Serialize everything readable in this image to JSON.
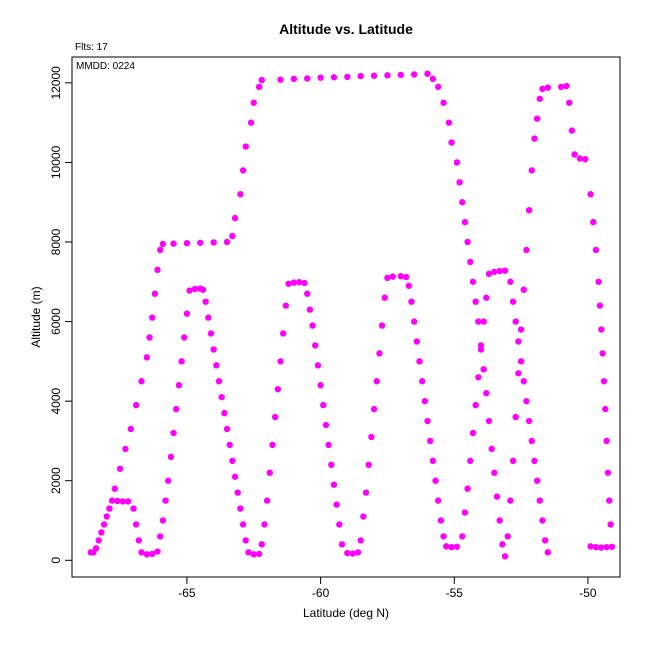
{
  "chart_data": {
    "type": "scatter",
    "title": "Altitude vs. Latitude",
    "subtitle": "Flts: 17",
    "annotation": "MMDD: 0224",
    "xlabel": "Latitude (deg N)",
    "ylabel": "Altitude (m)",
    "xlim": [
      -69.3,
      -48.8
    ],
    "ylim": [
      -420,
      12650
    ],
    "xticks": [
      -65,
      -60,
      -55,
      -50
    ],
    "yticks": [
      0,
      2000,
      4000,
      6000,
      8000,
      10000,
      12000
    ],
    "grid": false,
    "marker_color": "#ff00ff",
    "series": [
      {
        "points": [
          [
            -68.5,
            200
          ],
          [
            -68.3,
            500
          ],
          [
            -68.1,
            900
          ],
          [
            -67.9,
            1300
          ],
          [
            -67.7,
            1800
          ],
          [
            -67.5,
            2300
          ],
          [
            -67.3,
            2800
          ],
          [
            -67.1,
            3300
          ],
          [
            -66.9,
            3900
          ],
          [
            -66.7,
            4500
          ],
          [
            -66.5,
            5100
          ],
          [
            -66.4,
            5600
          ],
          [
            -66.3,
            6100
          ],
          [
            -66.2,
            6700
          ],
          [
            -66.1,
            7300
          ],
          [
            -66.0,
            7800
          ],
          [
            -65.9,
            7950
          ],
          [
            -65.5,
            7960
          ],
          [
            -65.0,
            7970
          ],
          [
            -64.5,
            7980
          ],
          [
            -64.0,
            7990
          ],
          [
            -63.5,
            8000
          ],
          [
            -63.3,
            8150
          ],
          [
            -63.2,
            8600
          ],
          [
            -63.0,
            9200
          ],
          [
            -62.9,
            9800
          ],
          [
            -62.8,
            10400
          ],
          [
            -62.6,
            11000
          ],
          [
            -62.5,
            11500
          ],
          [
            -62.3,
            11900
          ],
          [
            -62.2,
            12070
          ],
          [
            -61.5,
            12080
          ],
          [
            -61.0,
            12100
          ],
          [
            -60.5,
            12110
          ],
          [
            -60.0,
            12130
          ],
          [
            -59.5,
            12140
          ],
          [
            -59.0,
            12150
          ],
          [
            -58.5,
            12170
          ],
          [
            -58.0,
            12180
          ],
          [
            -57.5,
            12190
          ],
          [
            -57.0,
            12200
          ],
          [
            -56.5,
            12210
          ],
          [
            -56.0,
            12230
          ],
          [
            -55.8,
            12100
          ],
          [
            -55.6,
            11900
          ],
          [
            -55.4,
            11500
          ],
          [
            -55.2,
            11000
          ],
          [
            -55.1,
            10500
          ],
          [
            -54.9,
            10000
          ],
          [
            -54.8,
            9500
          ],
          [
            -54.7,
            9000
          ],
          [
            -54.6,
            8500
          ],
          [
            -54.5,
            8000
          ],
          [
            -54.4,
            7500
          ],
          [
            -54.3,
            7000
          ],
          [
            -54.2,
            6500
          ],
          [
            -54.1,
            6000
          ],
          [
            -54.0,
            5400
          ],
          [
            -53.9,
            4800
          ],
          [
            -53.8,
            4200
          ],
          [
            -53.7,
            3500
          ],
          [
            -53.6,
            2800
          ],
          [
            -53.5,
            2200
          ],
          [
            -53.4,
            1600
          ],
          [
            -53.3,
            1000
          ],
          [
            -53.2,
            400
          ],
          [
            -53.1,
            100
          ],
          [
            -53.0,
            600
          ],
          [
            -52.9,
            1500
          ],
          [
            -52.8,
            2500
          ],
          [
            -52.7,
            3600
          ],
          [
            -52.6,
            4700
          ],
          [
            -52.5,
            5800
          ],
          [
            -52.4,
            6800
          ],
          [
            -52.3,
            7800
          ],
          [
            -52.2,
            8800
          ],
          [
            -52.1,
            9800
          ],
          [
            -52.0,
            10600
          ],
          [
            -51.9,
            11100
          ],
          [
            -51.8,
            11600
          ],
          [
            -51.7,
            11850
          ],
          [
            -51.5,
            11880
          ],
          [
            -51.0,
            11900
          ],
          [
            -50.8,
            11920
          ],
          [
            -50.7,
            11500
          ],
          [
            -50.6,
            10800
          ],
          [
            -50.5,
            10200
          ],
          [
            -50.3,
            10100
          ],
          [
            -50.1,
            10080
          ],
          [
            -49.9,
            9200
          ],
          [
            -49.8,
            8500
          ],
          [
            -49.7,
            7800
          ],
          [
            -49.6,
            7000
          ],
          [
            -49.55,
            6400
          ],
          [
            -49.5,
            5800
          ],
          [
            -49.45,
            5200
          ],
          [
            -49.4,
            4500
          ],
          [
            -49.35,
            3800
          ],
          [
            -49.3,
            3000
          ],
          [
            -49.25,
            2200
          ],
          [
            -49.2,
            1500
          ],
          [
            -49.15,
            900
          ],
          [
            -49.1,
            340
          ],
          [
            -49.3,
            330
          ],
          [
            -49.5,
            320
          ],
          [
            -49.7,
            330
          ],
          [
            -49.9,
            350
          ]
        ]
      },
      {
        "points": [
          [
            -68.6,
            200
          ],
          [
            -68.4,
            300
          ],
          [
            -68.2,
            700
          ],
          [
            -68.0,
            1100
          ],
          [
            -67.8,
            1500
          ],
          [
            -67.6,
            1490
          ],
          [
            -67.4,
            1480
          ],
          [
            -67.2,
            1480
          ],
          [
            -67.0,
            1300
          ],
          [
            -66.9,
            900
          ],
          [
            -66.8,
            500
          ],
          [
            -66.7,
            200
          ],
          [
            -66.5,
            150
          ],
          [
            -66.3,
            160
          ],
          [
            -66.1,
            220
          ],
          [
            -66.0,
            600
          ],
          [
            -65.9,
            1000
          ],
          [
            -65.8,
            1500
          ],
          [
            -65.7,
            2000
          ],
          [
            -65.6,
            2600
          ],
          [
            -65.5,
            3200
          ],
          [
            -65.4,
            3800
          ],
          [
            -65.3,
            4400
          ],
          [
            -65.2,
            5000
          ],
          [
            -65.1,
            5600
          ],
          [
            -65.0,
            6200
          ],
          [
            -64.9,
            6780
          ],
          [
            -64.7,
            6820
          ],
          [
            -64.5,
            6830
          ],
          [
            -64.4,
            6800
          ],
          [
            -64.3,
            6500
          ],
          [
            -64.2,
            6100
          ],
          [
            -64.1,
            5700
          ],
          [
            -64.0,
            5300
          ],
          [
            -63.9,
            4900
          ],
          [
            -63.8,
            4500
          ],
          [
            -63.7,
            4100
          ],
          [
            -63.6,
            3700
          ],
          [
            -63.5,
            3300
          ],
          [
            -63.4,
            2900
          ],
          [
            -63.3,
            2500
          ],
          [
            -63.2,
            2100
          ],
          [
            -63.1,
            1700
          ],
          [
            -63.0,
            1300
          ],
          [
            -62.9,
            900
          ],
          [
            -62.8,
            500
          ],
          [
            -62.7,
            200
          ],
          [
            -62.5,
            150
          ],
          [
            -62.3,
            160
          ],
          [
            -62.2,
            400
          ],
          [
            -62.1,
            900
          ],
          [
            -62.0,
            1500
          ],
          [
            -61.9,
            2200
          ],
          [
            -61.8,
            2900
          ],
          [
            -61.7,
            3600
          ],
          [
            -61.6,
            4300
          ],
          [
            -61.5,
            5000
          ],
          [
            -61.4,
            5700
          ],
          [
            -61.3,
            6400
          ],
          [
            -61.2,
            6950
          ],
          [
            -61.0,
            6980
          ],
          [
            -60.8,
            6990
          ],
          [
            -60.6,
            6970
          ],
          [
            -60.5,
            6700
          ],
          [
            -60.4,
            6300
          ],
          [
            -60.3,
            5900
          ],
          [
            -60.2,
            5400
          ],
          [
            -60.1,
            4900
          ],
          [
            -60.0,
            4400
          ],
          [
            -59.9,
            3900
          ],
          [
            -59.8,
            3400
          ],
          [
            -59.7,
            2900
          ],
          [
            -59.6,
            2400
          ],
          [
            -59.5,
            1900
          ],
          [
            -59.4,
            1400
          ],
          [
            -59.3,
            900
          ],
          [
            -59.2,
            400
          ],
          [
            -59.0,
            180
          ],
          [
            -58.8,
            170
          ],
          [
            -58.6,
            200
          ],
          [
            -58.5,
            500
          ],
          [
            -58.4,
            1100
          ],
          [
            -58.3,
            1700
          ],
          [
            -58.2,
            2400
          ],
          [
            -58.1,
            3100
          ],
          [
            -58.0,
            3800
          ],
          [
            -57.9,
            4500
          ],
          [
            -57.8,
            5200
          ],
          [
            -57.7,
            5900
          ],
          [
            -57.6,
            6600
          ],
          [
            -57.5,
            7100
          ],
          [
            -57.3,
            7130
          ],
          [
            -57.0,
            7140
          ],
          [
            -56.8,
            7120
          ],
          [
            -56.7,
            6900
          ],
          [
            -56.6,
            6500
          ],
          [
            -56.5,
            6000
          ],
          [
            -56.4,
            5500
          ],
          [
            -56.3,
            5000
          ],
          [
            -56.2,
            4500
          ],
          [
            -56.1,
            4000
          ],
          [
            -56.0,
            3500
          ],
          [
            -55.9,
            3000
          ],
          [
            -55.8,
            2500
          ],
          [
            -55.7,
            2000
          ],
          [
            -55.6,
            1500
          ],
          [
            -55.5,
            1000
          ],
          [
            -55.4,
            600
          ],
          [
            -55.3,
            350
          ],
          [
            -55.1,
            330
          ],
          [
            -54.9,
            340
          ],
          [
            -54.7,
            600
          ],
          [
            -54.6,
            1200
          ],
          [
            -54.5,
            1800
          ],
          [
            -54.4,
            2500
          ],
          [
            -54.3,
            3200
          ],
          [
            -54.2,
            3900
          ],
          [
            -54.1,
            4600
          ],
          [
            -54.0,
            5300
          ],
          [
            -53.9,
            6000
          ],
          [
            -53.8,
            6600
          ],
          [
            -53.7,
            7200
          ],
          [
            -53.5,
            7250
          ],
          [
            -53.3,
            7270
          ],
          [
            -53.1,
            7280
          ],
          [
            -52.9,
            7000
          ],
          [
            -52.8,
            6500
          ],
          [
            -52.7,
            6000
          ],
          [
            -52.6,
            5500
          ],
          [
            -52.5,
            5000
          ],
          [
            -52.4,
            4500
          ],
          [
            -52.3,
            4000
          ],
          [
            -52.2,
            3500
          ],
          [
            -52.1,
            3000
          ],
          [
            -52.0,
            2500
          ],
          [
            -51.9,
            2000
          ],
          [
            -51.8,
            1500
          ],
          [
            -51.7,
            1000
          ],
          [
            -51.6,
            500
          ],
          [
            -51.5,
            200
          ]
        ]
      }
    ]
  }
}
